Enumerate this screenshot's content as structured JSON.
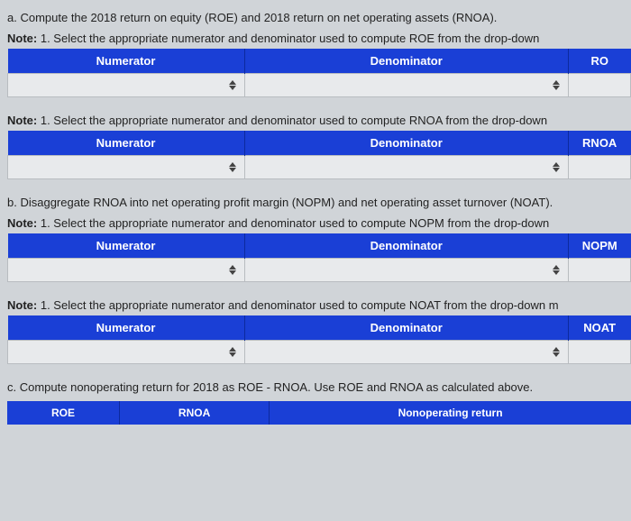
{
  "section_a": {
    "prompt": "a. Compute the 2018 return on equity (ROE) and 2018 return on net operating assets (RNOA).",
    "note_roe": "1. Select the appropriate numerator and denominator used to compute ROE from the drop-down",
    "note_label": "Note:",
    "roe_table": {
      "headers": {
        "numerator": "Numerator",
        "denominator": "Denominator",
        "result": "RO"
      }
    },
    "note_rnoa": "1. Select the appropriate numerator and denominator used to compute RNOA from the drop-down",
    "rnoa_table": {
      "headers": {
        "numerator": "Numerator",
        "denominator": "Denominator",
        "result": "RNOA"
      }
    }
  },
  "section_b": {
    "prompt": "b. Disaggregate RNOA into net operating profit margin (NOPM) and net operating asset turnover (NOAT).",
    "note_nopm": "1. Select the appropriate numerator and denominator used to compute NOPM from the drop-down",
    "note_label": "Note:",
    "nopm_table": {
      "headers": {
        "numerator": "Numerator",
        "denominator": "Denominator",
        "result": "NOPM"
      }
    },
    "note_noat": "1. Select the appropriate numerator and denominator used to compute NOAT from the drop-down m",
    "noat_table": {
      "headers": {
        "numerator": "Numerator",
        "denominator": "Denominator",
        "result": "NOAT"
      }
    }
  },
  "section_c": {
    "prompt": "c. Compute nonoperating return for 2018 as ROE - RNOA. Use ROE and RNOA as calculated above.",
    "headers": {
      "roe": "ROE",
      "rnoa": "RNOA",
      "nonop": "Nonoperating return"
    }
  },
  "colors": {
    "header_bg": "#1a3fd6",
    "header_text": "#ffffff",
    "cell_bg": "#e8eaec",
    "page_bg": "#d0d4d8",
    "border": "#b8bcc0"
  }
}
